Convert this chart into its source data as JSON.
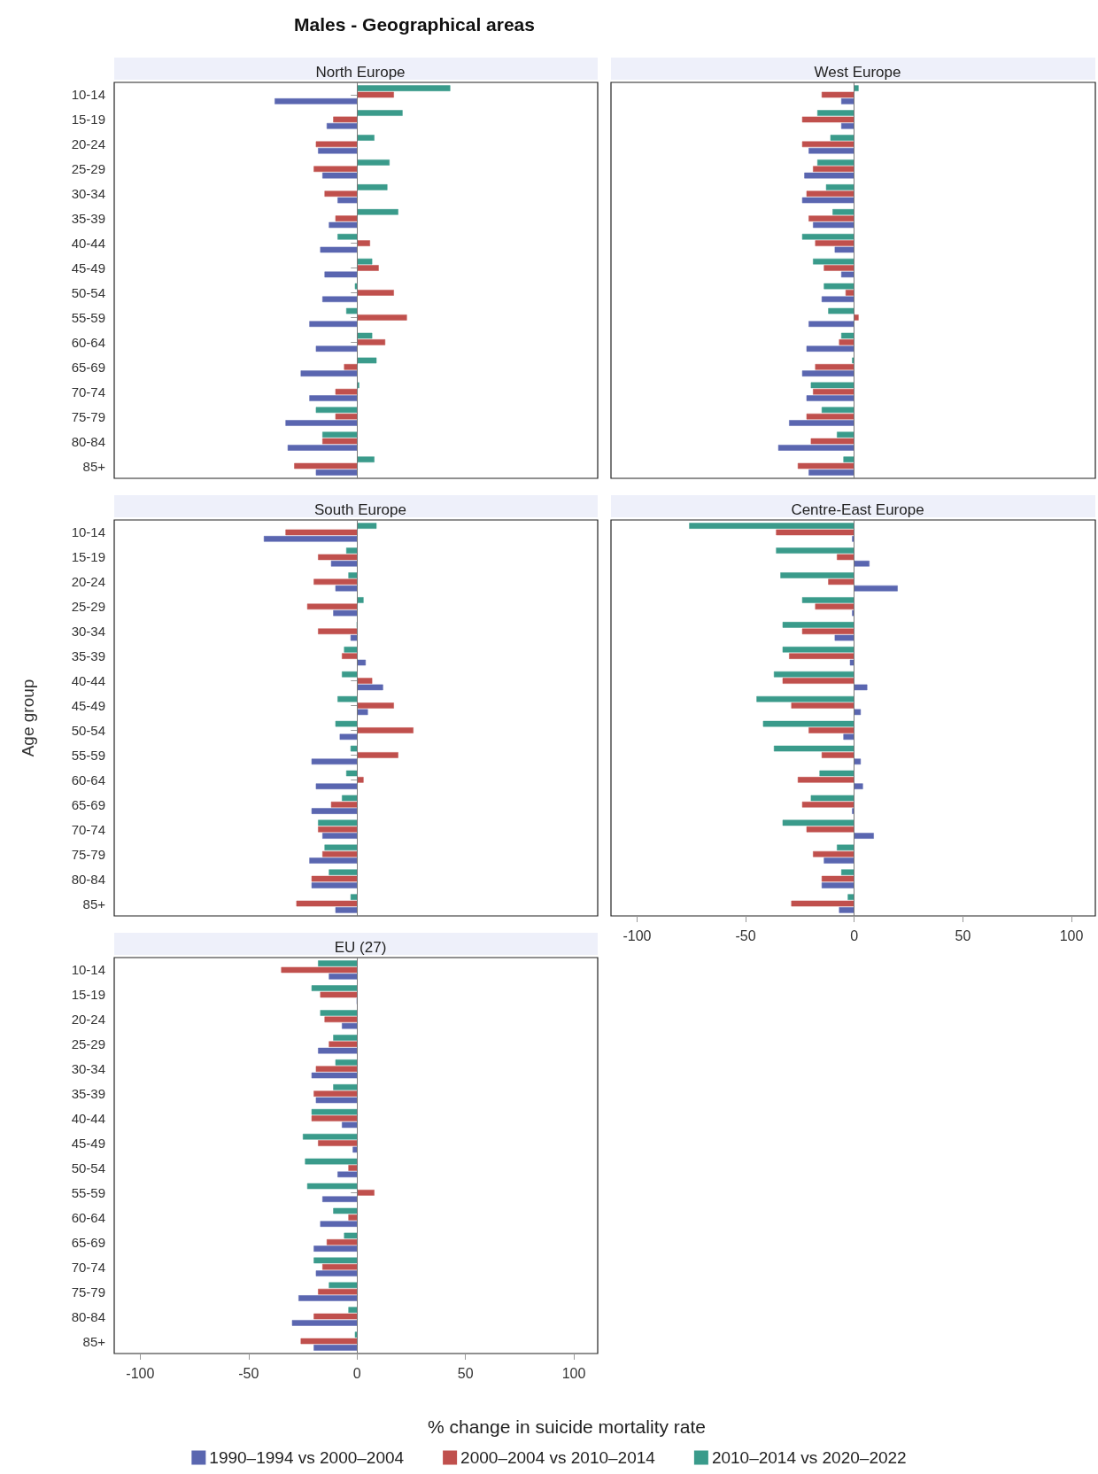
{
  "chart_data": [
    {
      "type": "bar",
      "orientation": "horizontal",
      "title": "Males - Geographical areas",
      "subtitle": "North Europe",
      "categories": [
        "10-14",
        "15-19",
        "20-24",
        "25-29",
        "30-34",
        "35-39",
        "40-44",
        "45-49",
        "50-54",
        "55-59",
        "60-64",
        "65-69",
        "70-74",
        "75-79",
        "80-84",
        "85+"
      ],
      "series": [
        {
          "color": "#5a66b0",
          "values": [
            -38,
            -14,
            -18,
            -16,
            -9,
            -13,
            -17,
            -15,
            -16,
            -22,
            -19,
            -26,
            -22,
            -33,
            -32,
            -19
          ]
        },
        {
          "color": "#c0504d",
          "values": [
            17,
            -11,
            -19,
            -20,
            -15,
            -10,
            6,
            10,
            17,
            23,
            13,
            -6,
            -10,
            -10,
            -16,
            -29
          ]
        },
        {
          "color": "#3a9b8b",
          "values": [
            43,
            21,
            8,
            15,
            14,
            19,
            -9,
            7,
            -1,
            -5,
            7,
            9,
            1,
            -19,
            -16,
            8
          ]
        }
      ],
      "xlim": [
        -112,
        111
      ],
      "xticks": [
        -100,
        -50,
        0,
        50,
        100
      ],
      "tick_labels": "y",
      "ref_lines": [
        {
          "axis": "x",
          "value": 0
        }
      ]
    },
    {
      "type": "bar",
      "orientation": "horizontal",
      "subtitle": "West Europe",
      "categories": [
        null,
        null,
        null,
        null,
        null,
        null,
        null,
        null,
        null,
        null,
        null,
        null,
        null,
        null,
        null,
        null
      ],
      "series": [
        {
          "color": "#5a66b0",
          "values": [
            -6,
            -6,
            -21,
            -23,
            -24,
            -19,
            -9,
            -6,
            -15,
            -21,
            -22,
            -24,
            -22,
            -30,
            -35,
            -21
          ]
        },
        {
          "color": "#c0504d",
          "values": [
            -15,
            -24,
            -24,
            -19,
            -22,
            -21,
            -18,
            -14,
            -4,
            2,
            -7,
            -18,
            -19,
            -22,
            -20,
            -26
          ]
        },
        {
          "color": "#3a9b8b",
          "values": [
            2,
            -17,
            -11,
            -17,
            -13,
            -10,
            -24,
            -19,
            -14,
            -12,
            -6,
            -1,
            -20,
            -15,
            -8,
            -5
          ]
        }
      ],
      "xlim": [
        -112,
        111
      ],
      "xticks": [
        -100,
        -50,
        0,
        50,
        100
      ],
      "tick_labels": false,
      "ref_lines": [
        {
          "axis": "x",
          "value": 0
        }
      ]
    },
    {
      "type": "bar",
      "orientation": "horizontal",
      "subtitle": "South Europe",
      "ylabel": "Age group",
      "categories": [
        "10-14",
        "15-19",
        "20-24",
        "25-29",
        "30-34",
        "35-39",
        "40-44",
        "45-49",
        "50-54",
        "55-59",
        "60-64",
        "65-69",
        "70-74",
        "75-79",
        "80-84",
        "85+"
      ],
      "series": [
        {
          "color": "#5a66b0",
          "values": [
            -43,
            -12,
            -10,
            -11,
            -3,
            4,
            12,
            5,
            -8,
            -21,
            -19,
            -21,
            -16,
            -22,
            -21,
            -10
          ]
        },
        {
          "color": "#c0504d",
          "values": [
            -33,
            -18,
            -20,
            -23,
            -18,
            -7,
            7,
            17,
            26,
            19,
            3,
            -12,
            -18,
            -16,
            -21,
            -28
          ]
        },
        {
          "color": "#3a9b8b",
          "values": [
            9,
            -5,
            -4,
            3,
            0,
            -6,
            -7,
            -9,
            -10,
            -3,
            -5,
            -7,
            -18,
            -15,
            -13,
            -3
          ]
        }
      ],
      "xlim": [
        -112,
        111
      ],
      "xticks": [
        -100,
        -50,
        0,
        50,
        100
      ],
      "tick_labels": "y",
      "ref_lines": [
        {
          "axis": "x",
          "value": 0
        }
      ]
    },
    {
      "type": "bar",
      "orientation": "horizontal",
      "subtitle": "Centre-East Europe",
      "categories": [
        null,
        null,
        null,
        null,
        null,
        null,
        null,
        null,
        null,
        null,
        null,
        null,
        null,
        null,
        null,
        null
      ],
      "series": [
        {
          "color": "#5a66b0",
          "values": [
            -1,
            7,
            20,
            -1,
            -9,
            -2,
            6,
            3,
            -5,
            3,
            4,
            -1,
            9,
            -14,
            -15,
            -7
          ]
        },
        {
          "color": "#c0504d",
          "values": [
            -36,
            -8,
            -12,
            -18,
            -24,
            -30,
            -33,
            -29,
            -21,
            -15,
            -26,
            -24,
            -22,
            -19,
            -15,
            -29
          ]
        },
        {
          "color": "#3a9b8b",
          "values": [
            -76,
            -36,
            -34,
            -24,
            -33,
            -33,
            -37,
            -45,
            -42,
            -37,
            -16,
            -20,
            -33,
            -8,
            -6,
            -3
          ]
        }
      ],
      "xlim": [
        -112,
        111
      ],
      "xticks": [
        -100,
        -50,
        0,
        50,
        100
      ],
      "tick_labels": "x",
      "ref_lines": [
        {
          "axis": "x",
          "value": 0
        }
      ]
    },
    {
      "type": "bar",
      "orientation": "horizontal",
      "subtitle": "EU (27)",
      "xlabel": "% change in suicide mortality rate",
      "legend": "bottom",
      "categories": [
        "10-14",
        "15-19",
        "20-24",
        "25-29",
        "30-34",
        "35-39",
        "40-44",
        "45-49",
        "50-54",
        "55-59",
        "60-64",
        "65-69",
        "70-74",
        "75-79",
        "80-84",
        "85+"
      ],
      "series": [
        {
          "name": "1990–1994 vs 2000–2004",
          "color": "#5a66b0",
          "values": [
            -13,
            0,
            -7,
            -18,
            -21,
            -19,
            -7,
            -2,
            -9,
            -16,
            -17,
            -20,
            -19,
            -27,
            -30,
            -20
          ]
        },
        {
          "name": "2000–2004 vs 2010–2014",
          "color": "#c0504d",
          "values": [
            -35,
            -17,
            -15,
            -13,
            -19,
            -20,
            -21,
            -18,
            -4,
            8,
            -4,
            -14,
            -16,
            -18,
            -20,
            -26
          ]
        },
        {
          "name": "2010–2014 vs 2020–2022",
          "color": "#3a9b8b",
          "values": [
            -18,
            -21,
            -17,
            -11,
            -10,
            -11,
            -21,
            -25,
            -24,
            -23,
            -11,
            -6,
            -20,
            -13,
            -4,
            -1
          ]
        }
      ],
      "xlim": [
        -112,
        111
      ],
      "xticks": [
        -100,
        -50,
        0,
        50,
        100
      ],
      "ref_lines": [
        {
          "axis": "x",
          "value": 0
        }
      ]
    }
  ]
}
